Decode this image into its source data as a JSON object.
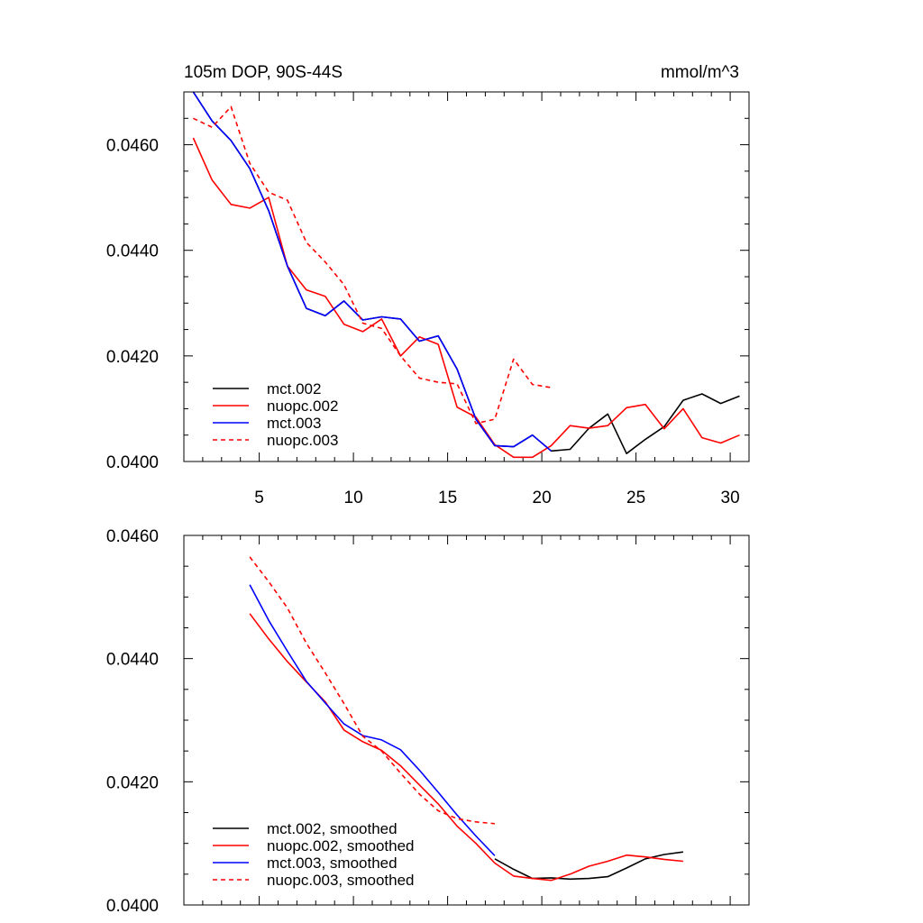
{
  "chart_data": [
    {
      "type": "line",
      "title_left": "105m DOP, 90S-44S",
      "title_right": "mmol/m^3",
      "xlim": [
        1,
        31
      ],
      "ylim": [
        0.04,
        0.047
      ],
      "xticks": [
        5,
        10,
        15,
        20,
        25,
        30
      ],
      "yticks": [
        0.04,
        0.042,
        0.044,
        0.046
      ],
      "ytick_labels": [
        "0.0400",
        "0.0420",
        "0.0440",
        "0.0460"
      ],
      "show_xtick_labels": true,
      "legend_position": "bottom-left",
      "series": [
        {
          "name": "mct.002",
          "color": "#000000",
          "dash": "solid",
          "x": [
            1.5,
            2.5,
            3.5,
            4.5,
            5.5,
            6.5,
            7.5,
            8.5,
            9.5,
            10.5,
            11.5,
            12.5,
            13.5,
            14.5,
            15.5,
            16.5,
            17.5,
            18.5,
            19.5,
            20.5,
            21.5,
            22.5,
            23.5,
            24.5,
            25.5,
            26.5,
            27.5,
            28.5,
            29.5,
            30.5
          ],
          "values": [
            0.047,
            0.04645,
            0.04608,
            0.04555,
            0.04475,
            0.0437,
            0.0429,
            0.04276,
            0.04304,
            0.04268,
            0.04274,
            0.0427,
            0.04228,
            0.04238,
            0.04175,
            0.0408,
            0.0403,
            0.04028,
            0.0405,
            0.0402,
            0.04023,
            0.04063,
            0.0409,
            0.04015,
            0.04042,
            0.04066,
            0.04116,
            0.04128,
            0.0411,
            0.04124
          ]
        },
        {
          "name": "nuopc.002",
          "color": "#ff0000",
          "dash": "solid",
          "x": [
            1.5,
            2.5,
            3.5,
            4.5,
            5.5,
            6.5,
            7.5,
            8.5,
            9.5,
            10.5,
            11.5,
            12.5,
            13.5,
            14.5,
            15.5,
            16.5,
            17.5,
            18.5,
            19.5,
            20.5,
            21.5,
            22.5,
            23.5,
            24.5,
            25.5,
            26.5,
            27.5,
            28.5,
            29.5,
            30.5
          ],
          "values": [
            0.04613,
            0.04533,
            0.04487,
            0.0448,
            0.045,
            0.0437,
            0.04325,
            0.04313,
            0.0426,
            0.04246,
            0.0427,
            0.042,
            0.04236,
            0.04222,
            0.04103,
            0.04084,
            0.04032,
            0.04008,
            0.04008,
            0.0403,
            0.04068,
            0.04063,
            0.04068,
            0.04102,
            0.04108,
            0.04062,
            0.041,
            0.04045,
            0.04035,
            0.0405
          ]
        },
        {
          "name": "mct.003",
          "color": "#0000ff",
          "dash": "solid",
          "x": [
            1.5,
            2.5,
            3.5,
            4.5,
            5.5,
            6.5,
            7.5,
            8.5,
            9.5,
            10.5,
            11.5,
            12.5,
            13.5,
            14.5,
            15.5,
            16.5,
            17.5,
            18.5,
            19.5,
            20.5
          ],
          "values": [
            0.047,
            0.04645,
            0.04608,
            0.04555,
            0.04475,
            0.0437,
            0.0429,
            0.04276,
            0.04304,
            0.04268,
            0.04274,
            0.0427,
            0.04228,
            0.04238,
            0.04175,
            0.0408,
            0.0403,
            0.04028,
            0.0405,
            0.0402
          ]
        },
        {
          "name": "nuopc.003",
          "color": "#ff0000",
          "dash": "dashed",
          "x": [
            1.5,
            2.5,
            3.5,
            4.5,
            5.5,
            6.5,
            7.5,
            8.5,
            9.5,
            10.5,
            11.5,
            12.5,
            13.5,
            14.5,
            15.5,
            16.5,
            17.5,
            18.5,
            19.5,
            20.5
          ],
          "values": [
            0.0465,
            0.04633,
            0.04672,
            0.04565,
            0.0451,
            0.04495,
            0.04415,
            0.04378,
            0.04335,
            0.04262,
            0.04252,
            0.042,
            0.04158,
            0.0415,
            0.04147,
            0.04072,
            0.0408,
            0.04194,
            0.04146,
            0.0414
          ]
        }
      ]
    },
    {
      "type": "line",
      "xlim": [
        1,
        31
      ],
      "ylim": [
        0.04,
        0.046
      ],
      "xticks": [
        5,
        10,
        15,
        20,
        25,
        30
      ],
      "yticks": [
        0.04,
        0.042,
        0.044,
        0.046
      ],
      "ytick_labels": [
        "0.0400",
        "0.0420",
        "0.0440",
        "0.0460"
      ],
      "show_xtick_labels": false,
      "legend_position": "bottom-left",
      "series": [
        {
          "name": "mct.002, smoothed",
          "color": "#000000",
          "dash": "solid",
          "x": [
            17.5,
            18.5,
            19.5,
            20.5,
            21.5,
            22.5,
            23.5,
            24.5,
            25.5,
            26.5,
            27.5
          ],
          "values": [
            0.04075,
            0.04058,
            0.04043,
            0.04044,
            0.04042,
            0.04043,
            0.04046,
            0.0406,
            0.04075,
            0.04082,
            0.04086
          ]
        },
        {
          "name": "nuopc.002, smoothed",
          "color": "#ff0000",
          "dash": "solid",
          "x": [
            4.5,
            5.5,
            6.5,
            7.5,
            8.5,
            9.5,
            10.5,
            11.5,
            12.5,
            13.5,
            14.5,
            15.5,
            16.5,
            17.5,
            18.5,
            19.5,
            20.5,
            21.5,
            22.5,
            23.5,
            24.5,
            25.5,
            26.5,
            27.5
          ],
          "values": [
            0.04473,
            0.04432,
            0.04395,
            0.04362,
            0.0433,
            0.04284,
            0.04265,
            0.04251,
            0.04226,
            0.04195,
            0.04164,
            0.04128,
            0.041,
            0.04068,
            0.04047,
            0.04043,
            0.0404,
            0.0405,
            0.04063,
            0.04071,
            0.04081,
            0.04078,
            0.04074,
            0.04071
          ]
        },
        {
          "name": "mct.003, smoothed",
          "color": "#0000ff",
          "dash": "solid",
          "x": [
            4.5,
            5.5,
            6.5,
            7.5,
            8.5,
            9.5,
            10.5,
            11.5,
            12.5,
            13.5,
            14.5,
            15.5,
            16.5,
            17.5
          ],
          "values": [
            0.0452,
            0.04462,
            0.04412,
            0.04363,
            0.04328,
            0.04294,
            0.04275,
            0.04268,
            0.04252,
            0.04219,
            0.04183,
            0.04146,
            0.04112,
            0.0408
          ]
        },
        {
          "name": "nuopc.003, smoothed",
          "color": "#ff0000",
          "dash": "dashed",
          "x": [
            4.5,
            5.5,
            6.5,
            7.5,
            8.5,
            9.5,
            10.5,
            11.5,
            12.5,
            13.5,
            14.5,
            15.5,
            16.5,
            17.5
          ],
          "values": [
            0.04565,
            0.04525,
            0.04482,
            0.04425,
            0.04377,
            0.04327,
            0.04274,
            0.0425,
            0.04214,
            0.0418,
            0.04153,
            0.0414,
            0.04135,
            0.04132
          ]
        }
      ]
    }
  ]
}
